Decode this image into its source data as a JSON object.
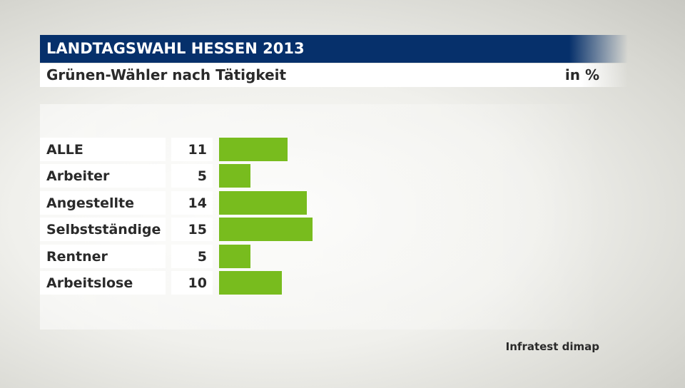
{
  "chart_data": {
    "type": "bar",
    "orientation": "horizontal",
    "title": "LANDTAGSWAHL HESSEN 2013",
    "subtitle": "Grünen-Wähler nach Tätigkeit",
    "unit": "in %",
    "categories": [
      "ALLE",
      "Arbeiter",
      "Angestellte",
      "Selbstständige",
      "Rentner",
      "Arbeitslose"
    ],
    "values": [
      11,
      5,
      14,
      15,
      5,
      10
    ],
    "xlim": [
      0,
      100
    ],
    "grid": false,
    "bar_color": "#78bc1e",
    "source": "Infratest dimap"
  },
  "colors": {
    "title_bar": "#06306b",
    "bar": "#78bc1e"
  }
}
